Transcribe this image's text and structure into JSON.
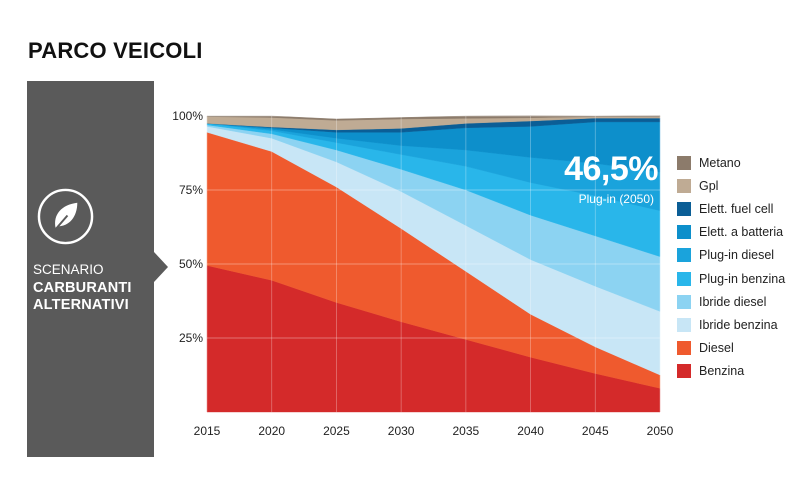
{
  "header": {
    "title": "PARCO VEICOLI"
  },
  "scenario": {
    "label": "SCENARIO",
    "name_lines": [
      "CARBURANTI",
      "ALTERNATIVI"
    ],
    "icon": "leaf-icon"
  },
  "callout": {
    "value": "46,5%",
    "caption": "Plug-in (2050)"
  },
  "chart_data": {
    "type": "area",
    "stacked": true,
    "x": [
      2015,
      2020,
      2025,
      2030,
      2035,
      2040,
      2045,
      2050
    ],
    "ylim": [
      0,
      100
    ],
    "yticks": [
      25,
      50,
      75,
      100
    ],
    "ytick_labels": [
      "25%",
      "50%",
      "75%",
      "100%"
    ],
    "xtick_labels": [
      "2015",
      "2020",
      "2025",
      "2030",
      "2035",
      "2040",
      "2045",
      "2050"
    ],
    "grid": true,
    "series": [
      {
        "name": "Benzina",
        "color": "#d42a2a",
        "values": [
          49.5,
          44.5,
          37,
          30.5,
          24.5,
          18.5,
          13,
          8
        ]
      },
      {
        "name": "Diesel",
        "color": "#ef5a2e",
        "values": [
          45,
          43.5,
          39,
          31.5,
          23,
          14.5,
          9,
          4.5
        ]
      },
      {
        "name": "Ibride benzina",
        "color": "#c8e6f6",
        "values": [
          2,
          4.5,
          8.5,
          12.5,
          15.5,
          18.5,
          20.5,
          21.5
        ]
      },
      {
        "name": "Ibride diesel",
        "color": "#8cd3f2",
        "values": [
          0.5,
          1.5,
          4,
          7.5,
          12,
          15,
          17,
          18.5
        ]
      },
      {
        "name": "Plug-in benzina",
        "color": "#29b6ea",
        "values": [
          0.5,
          1,
          2.5,
          5,
          8,
          11,
          13.5,
          15.5
        ]
      },
      {
        "name": "Plug-in diesel",
        "color": "#1aa3dc",
        "values": [
          0,
          0.5,
          1.5,
          3,
          5.5,
          8.5,
          11,
          13
        ]
      },
      {
        "name": "Elett. a batteria",
        "color": "#0d8fcb",
        "values": [
          0,
          0.5,
          2,
          4.5,
          7.5,
          10.5,
          14,
          17
        ]
      },
      {
        "name": "Elett. fuel cell",
        "color": "#0b5e96",
        "values": [
          0,
          0.3,
          0.8,
          1.3,
          1.5,
          1.8,
          1.3,
          1.3
        ]
      },
      {
        "name": "Gpl",
        "color": "#bfab94",
        "values": [
          2.3,
          3.2,
          3.2,
          3.2,
          1.7,
          1.1,
          0.5,
          0.4
        ]
      },
      {
        "name": "Metano",
        "color": "#8c7b6b",
        "values": [
          0.2,
          0.5,
          0.5,
          0.5,
          0.8,
          0.7,
          0.2,
          0.4
        ]
      }
    ]
  }
}
